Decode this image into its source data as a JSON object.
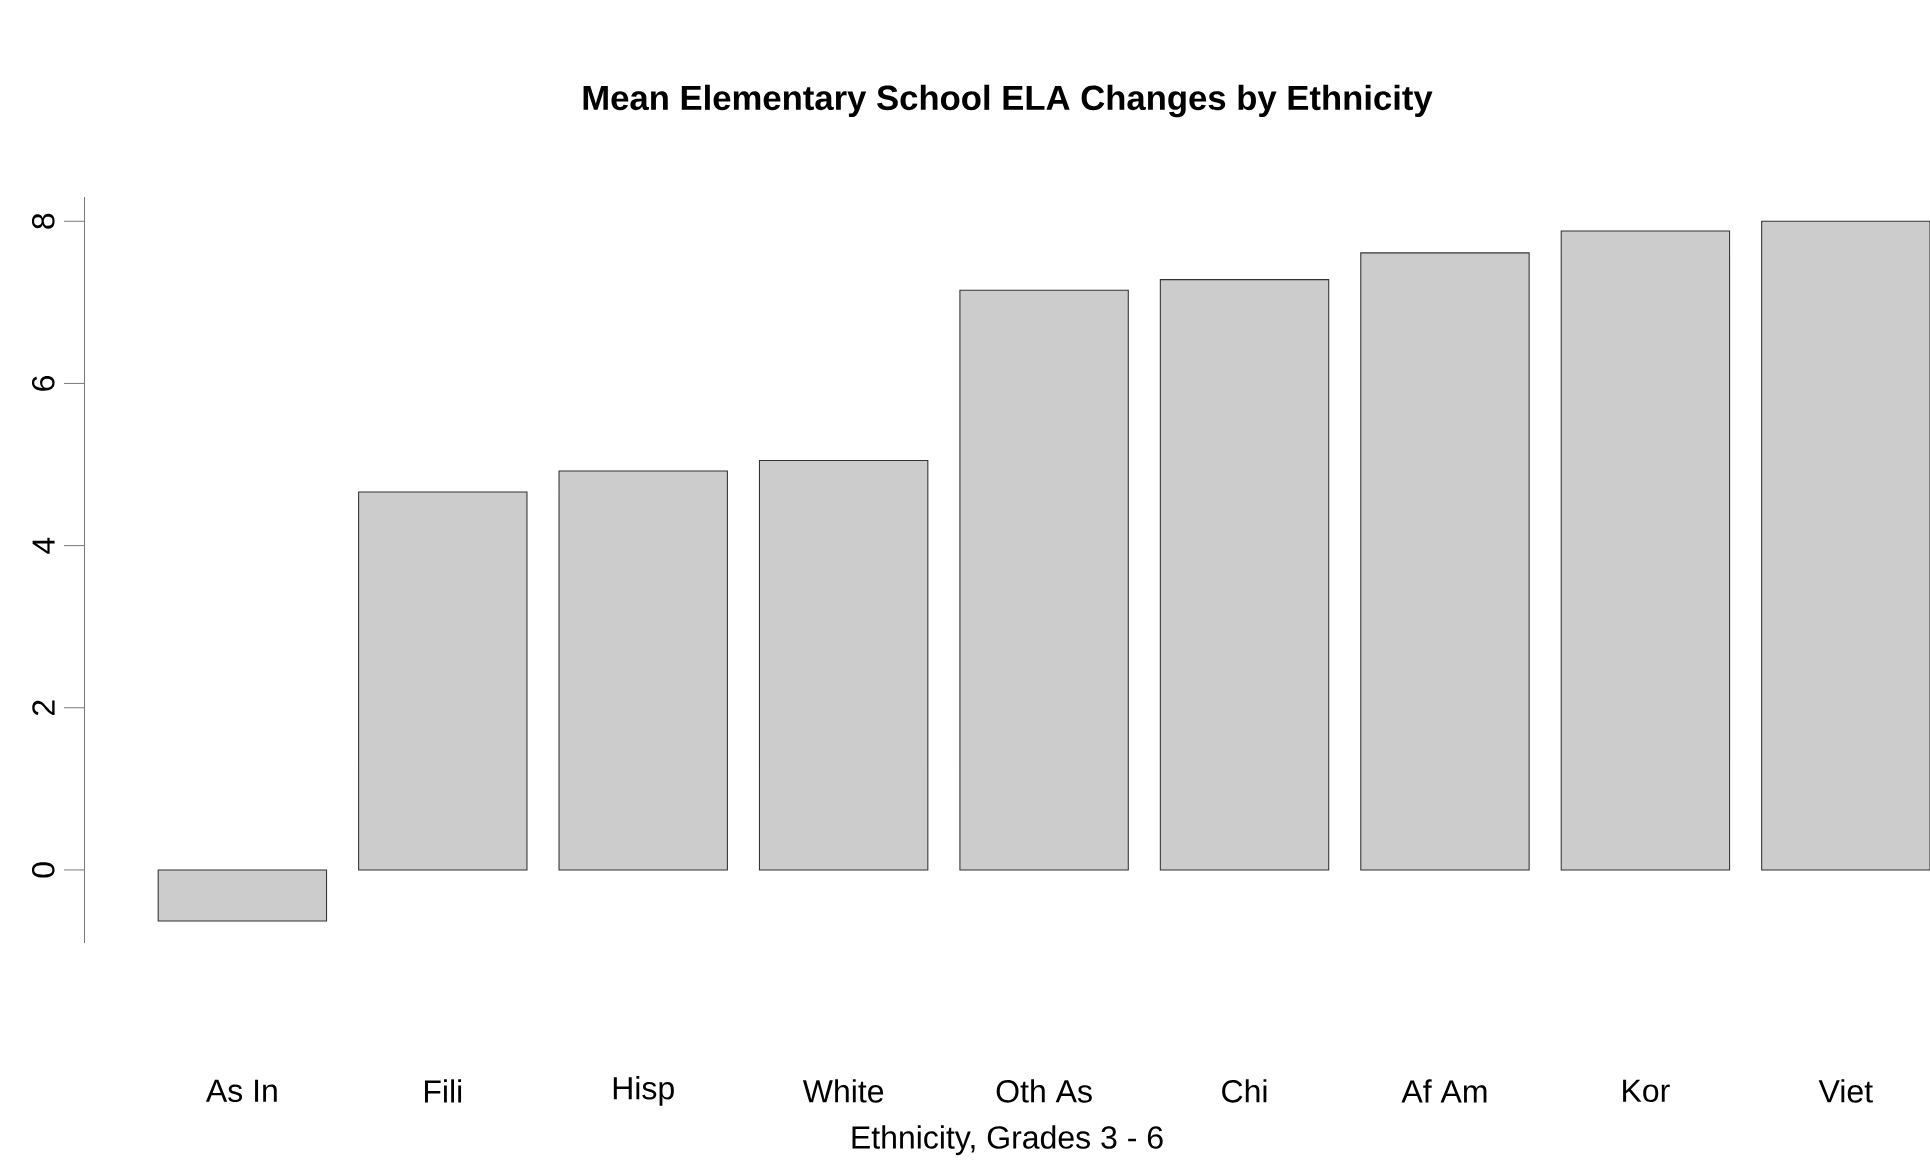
{
  "chart_data": {
    "type": "bar",
    "title": "Mean Elementary School ELA Changes by Ethnicity",
    "xlabel": "Ethnicity, Grades 3 - 6",
    "categories": [
      "As In",
      "Fili",
      "Hisp",
      "White",
      "Oth As",
      "Chi",
      "Af Am",
      "Kor",
      "Viet"
    ],
    "values": [
      -0.63,
      4.66,
      4.92,
      5.05,
      7.15,
      7.28,
      7.61,
      7.88,
      8.0
    ],
    "color": "#cccccc",
    "ylim": [
      -0.9,
      8.3
    ],
    "yticks": [
      0,
      2,
      4,
      6,
      8
    ]
  }
}
